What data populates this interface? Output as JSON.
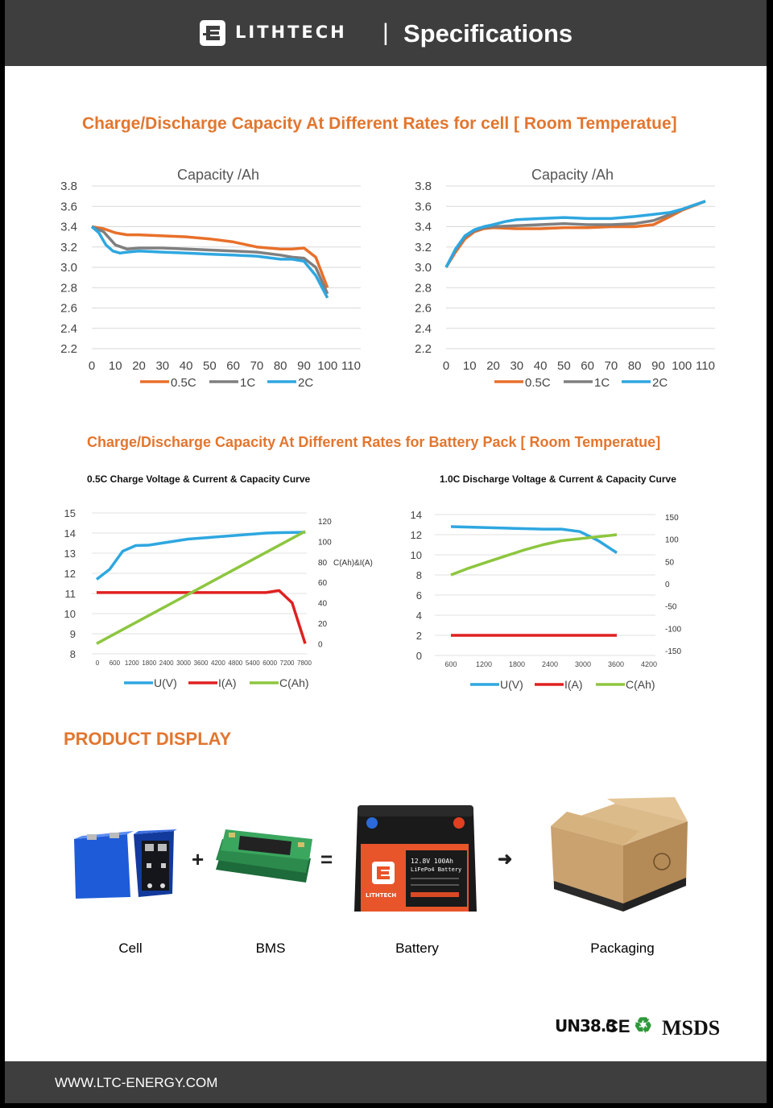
{
  "header": {
    "brand": "LITHTECH",
    "separator": "|",
    "title": "Specifications"
  },
  "section1": {
    "title": "Charge/Discharge Capacity At Different Rates for cell [ Room Temperatue]"
  },
  "section2": {
    "title": "Charge/Discharge Capacity At Different Rates for Battery Pack [ Room Temperatue]"
  },
  "colors": {
    "accent": "#e2762f",
    "orange": "#e8702a",
    "gray": "#7f7f7f",
    "blue": "#2ea7e0",
    "red": "#e02020",
    "green": "#8dc63f",
    "header_bg": "#3e3e3e"
  },
  "chart_data": [
    {
      "type": "line",
      "title": "Capacity /Ah",
      "x_ticks": [
        "0",
        "10",
        "20",
        "30",
        "40",
        "50",
        "60",
        "70",
        "80",
        "90",
        "100",
        "110"
      ],
      "y_ticks": [
        "2.2",
        "2.4",
        "2.6",
        "2.8",
        "3.0",
        "3.2",
        "3.4",
        "3.6",
        "3.8"
      ],
      "xlim": [
        0,
        110
      ],
      "ylim": [
        2.2,
        3.8
      ],
      "grid": true,
      "legend": "bottom",
      "series": [
        {
          "name": "0.5C",
          "color": "#e8702a",
          "x": [
            0,
            5,
            10,
            15,
            20,
            30,
            40,
            50,
            60,
            70,
            80,
            85,
            90,
            95,
            100
          ],
          "y": [
            3.4,
            3.38,
            3.34,
            3.32,
            3.32,
            3.31,
            3.3,
            3.28,
            3.25,
            3.2,
            3.18,
            3.18,
            3.19,
            3.1,
            2.8
          ]
        },
        {
          "name": "1C",
          "color": "#7f7f7f",
          "x": [
            0,
            5,
            10,
            15,
            20,
            30,
            40,
            50,
            60,
            70,
            80,
            85,
            90,
            95,
            100
          ],
          "y": [
            3.4,
            3.35,
            3.22,
            3.18,
            3.19,
            3.19,
            3.18,
            3.17,
            3.16,
            3.15,
            3.12,
            3.1,
            3.09,
            3.0,
            2.74
          ]
        },
        {
          "name": "2C",
          "color": "#2ea7e0",
          "x": [
            0,
            3,
            6,
            9,
            12,
            15,
            20,
            30,
            40,
            50,
            60,
            70,
            80,
            85,
            90,
            95,
            100
          ],
          "y": [
            3.4,
            3.34,
            3.22,
            3.16,
            3.14,
            3.15,
            3.16,
            3.15,
            3.14,
            3.13,
            3.12,
            3.11,
            3.08,
            3.08,
            3.06,
            2.92,
            2.7
          ]
        }
      ]
    },
    {
      "type": "line",
      "title": "Capacity /Ah",
      "x_ticks": [
        "0",
        "10",
        "20",
        "30",
        "40",
        "50",
        "60",
        "70",
        "80",
        "90",
        "100",
        "110"
      ],
      "y_ticks": [
        "2.2",
        "2.4",
        "2.6",
        "2.8",
        "3.0",
        "3.2",
        "3.4",
        "3.6",
        "3.8"
      ],
      "xlim": [
        0,
        110
      ],
      "ylim": [
        2.2,
        3.8
      ],
      "grid": true,
      "legend": "bottom",
      "series": [
        {
          "name": "0.5C",
          "color": "#e8702a",
          "x": [
            0,
            4,
            8,
            12,
            16,
            20,
            30,
            40,
            50,
            60,
            70,
            80,
            88,
            95,
            100,
            110
          ],
          "y": [
            3.0,
            3.15,
            3.28,
            3.35,
            3.38,
            3.39,
            3.38,
            3.38,
            3.39,
            3.39,
            3.4,
            3.4,
            3.42,
            3.5,
            3.56,
            3.65
          ]
        },
        {
          "name": "1C",
          "color": "#7f7f7f",
          "x": [
            0,
            4,
            8,
            12,
            16,
            20,
            30,
            40,
            50,
            60,
            70,
            80,
            88,
            95,
            100,
            110
          ],
          "y": [
            3.0,
            3.17,
            3.3,
            3.36,
            3.39,
            3.4,
            3.41,
            3.42,
            3.43,
            3.42,
            3.42,
            3.43,
            3.46,
            3.52,
            3.57,
            3.65
          ]
        },
        {
          "name": "2C",
          "color": "#2ea7e0",
          "x": [
            0,
            4,
            8,
            12,
            16,
            20,
            25,
            30,
            40,
            50,
            60,
            70,
            80,
            88,
            95,
            100,
            110
          ],
          "y": [
            3.0,
            3.18,
            3.31,
            3.37,
            3.4,
            3.42,
            3.45,
            3.47,
            3.48,
            3.49,
            3.48,
            3.48,
            3.5,
            3.52,
            3.54,
            3.57,
            3.65
          ]
        }
      ]
    },
    {
      "type": "line",
      "title": "0.5C Charge Voltage & Current & Capacity Curve",
      "x_ticks": [
        "0",
        "600",
        "1200",
        "1800",
        "2400",
        "3000",
        "3600",
        "4200",
        "4800",
        "5400",
        "6000",
        "7200",
        "7800"
      ],
      "y_left_ticks": [
        "8",
        "9",
        "10",
        "11",
        "12",
        "13",
        "14",
        "15"
      ],
      "y_right_ticks": [
        "0",
        "20",
        "40",
        "60",
        "80",
        "100",
        "120"
      ],
      "y_right_label": "C(Ah)&I(A)",
      "ylim_left": [
        8,
        15
      ],
      "ylim_right": [
        -10,
        128
      ],
      "grid": true,
      "legend": "bottom",
      "series": [
        {
          "name": "U(V)",
          "color": "#2ea7e0",
          "axis": "left",
          "y": [
            11.7,
            12.2,
            13.1,
            13.38,
            13.4,
            13.5,
            13.6,
            13.7,
            13.75,
            13.8,
            13.85,
            13.9,
            13.95,
            14.0,
            14.02,
            14.03,
            14.04
          ]
        },
        {
          "name": "I(A)",
          "color": "#e02020",
          "axis": "right",
          "y": [
            50,
            50,
            50,
            50,
            50,
            50,
            50,
            50,
            50,
            50,
            50,
            50,
            50,
            50,
            52,
            40,
            0
          ]
        },
        {
          "name": "C(Ah)",
          "color": "#8dc63f",
          "axis": "right",
          "y": [
            0,
            110
          ]
        }
      ]
    },
    {
      "type": "line",
      "title": "1.0C Discharge Voltage & Current & Capacity Curve",
      "x_ticks": [
        "600",
        "1200",
        "1800",
        "2400",
        "3000",
        "3600",
        "4200"
      ],
      "y_left_ticks": [
        "0",
        "2",
        "4",
        "6",
        "8",
        "10",
        "12",
        "14"
      ],
      "y_right_ticks": [
        "-150",
        "-100",
        "-50",
        "0",
        "50",
        "100",
        "150"
      ],
      "ylim_left": [
        0,
        14
      ],
      "ylim_right": [
        -150,
        150
      ],
      "grid": true,
      "legend": "bottom",
      "series": [
        {
          "name": "U(V)",
          "color": "#2ea7e0",
          "axis": "left",
          "y": [
            12.8,
            12.75,
            12.7,
            12.65,
            12.6,
            12.55,
            12.55,
            12.3,
            11.4,
            10.2
          ]
        },
        {
          "name": "I(A)",
          "color": "#e02020",
          "axis": "left",
          "y": [
            2,
            2
          ]
        },
        {
          "name": "C(Ah)",
          "color": "#8dc63f",
          "axis": "left",
          "y": [
            8,
            8.7,
            9.3,
            9.9,
            10.5,
            11.0,
            11.4,
            11.6,
            11.8,
            12.0
          ]
        }
      ]
    }
  ],
  "product": {
    "title": "PRODUCT DISPLAY",
    "labels": {
      "cell": "Cell",
      "bms": "BMS",
      "battery": "Battery",
      "packaging": "Packaging"
    },
    "ops": {
      "plus": "+",
      "equals": "=",
      "arrow": "➜"
    },
    "battery_label": {
      "brand": "LITHTECH",
      "line1": "12.8V 100Ah",
      "line2": "LiFePo4 Battery"
    }
  },
  "certs": {
    "un": "UN38.3",
    "ce": "CE",
    "recycle": "♻",
    "msds": "MSDS"
  },
  "footer": {
    "url": "WWW.LTC-ENERGY.COM"
  }
}
